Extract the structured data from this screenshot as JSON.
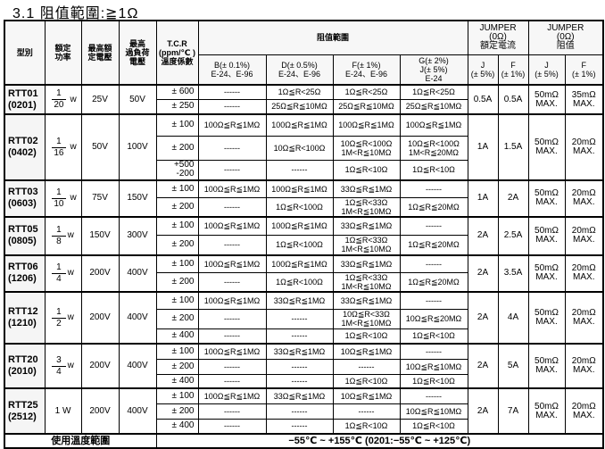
{
  "title": "3.1 阻值範圍:≧1Ω",
  "headers": {
    "model": "型別",
    "power": "額定\n功率",
    "rated_voltage": "最高額\n定電壓",
    "overload_voltage": "最高\n過負荷\n電壓",
    "tcr": "T.C.R\n(ppm/℃ )\n溫度係數",
    "range": "阻值範圍",
    "range_b": "B(± 0.1%)\nE-24、E-96",
    "range_d": "D(± 0.5%)\nE-24、E-96",
    "range_f": "F(± 1%)\nE-24、E-96",
    "range_g": "G(± 2%)\nJ(± 5%)\nE-24",
    "jumper_current": "JUMPER\n(0Ω)\n額定電流",
    "jumper_resistance": "JUMPER\n(0Ω)\n阻值",
    "jc_j": "J\n(± 5%)",
    "jc_f": "F\n(± 1%)",
    "jr_j": "J\n(± 5%)",
    "jr_f": "F\n(± 1%)"
  },
  "rows": [
    {
      "model": "RTT01\n(0201)",
      "power": {
        "num": "1",
        "den": "20",
        "unit": "w"
      },
      "rated_v": "25V",
      "overload_v": "50V",
      "jc_j": "0.5A",
      "jc_f": "0.5A",
      "jr_j": "50mΩ\nMAX.",
      "jr_f": "35mΩ\nMAX.",
      "sub": [
        {
          "tcr": "± 600",
          "b": "------",
          "d": "1Ω≦R<25Ω",
          "f": "1Ω≦R<25Ω",
          "g": "1Ω≦R<25Ω"
        },
        {
          "tcr": "± 250",
          "b": "------",
          "d": "25Ω≦R≦10MΩ",
          "f": "25Ω≦R≦10MΩ",
          "g": "25Ω≦R≦10MΩ"
        }
      ]
    },
    {
      "model": "RTT02\n(0402)",
      "power": {
        "num": "1",
        "den": "16",
        "unit": "w"
      },
      "rated_v": "50V",
      "overload_v": "100V",
      "jc_j": "1A",
      "jc_f": "1.5A",
      "jr_j": "50mΩ\nMAX.",
      "jr_f": "20mΩ\nMAX.",
      "sub": [
        {
          "tcr": "± 100",
          "b": "100Ω≦R≦1MΩ",
          "d": "100Ω≦R≦1MΩ",
          "f": "100Ω≦R≦1MΩ",
          "g": "100Ω≦R≦1MΩ"
        },
        {
          "tcr": "± 200",
          "b": "------",
          "d": "10Ω≦R<100Ω",
          "f": "10Ω≦R<100Ω\n1M<R≦10MΩ",
          "g": "10Ω≦R<100Ω\n1M<R≦20MΩ"
        },
        {
          "tcr": "+500\n-200",
          "b": "------",
          "d": "------",
          "f": "1Ω≦R<10Ω",
          "g": "1Ω≦R<10Ω"
        }
      ]
    },
    {
      "model": "RTT03\n(0603)",
      "power": {
        "num": "1",
        "den": "10",
        "unit": "w"
      },
      "rated_v": "75V",
      "overload_v": "150V",
      "jc_j": "1A",
      "jc_f": "2A",
      "jr_j": "50mΩ\nMAX.",
      "jr_f": "20mΩ\nMAX.",
      "sub": [
        {
          "tcr": "± 100",
          "b": "100Ω≦R≦1MΩ",
          "d": "100Ω≦R≦1MΩ",
          "f": "33Ω≦R≦1MΩ",
          "g": "------"
        },
        {
          "tcr": "± 200",
          "b": "------",
          "d": "1Ω≦R<100Ω",
          "f": "1Ω≦R<33Ω\n1M<R≦10MΩ",
          "g": "1Ω≦R≦20MΩ"
        }
      ]
    },
    {
      "model": "RTT05\n(0805)",
      "power": {
        "num": "1",
        "den": "8",
        "unit": "w"
      },
      "rated_v": "150V",
      "overload_v": "300V",
      "jc_j": "2A",
      "jc_f": "2.5A",
      "jr_j": "50mΩ\nMAX.",
      "jr_f": "20mΩ\nMAX.",
      "sub": [
        {
          "tcr": "± 100",
          "b": "100Ω≦R≦1MΩ",
          "d": "100Ω≦R≦1MΩ",
          "f": "33Ω≦R≦1MΩ",
          "g": "------"
        },
        {
          "tcr": "± 200",
          "b": "------",
          "d": "1Ω≦R<100Ω",
          "f": "1Ω≦R<33Ω\n1M<R≦10MΩ",
          "g": "1Ω≦R≦20MΩ"
        }
      ]
    },
    {
      "model": "RTT06\n(1206)",
      "power": {
        "num": "1",
        "den": "4",
        "unit": "w"
      },
      "rated_v": "200V",
      "overload_v": "400V",
      "jc_j": "2A",
      "jc_f": "3.5A",
      "jr_j": "50mΩ\nMAX.",
      "jr_f": "20mΩ\nMAX.",
      "sub": [
        {
          "tcr": "± 100",
          "b": "100Ω≦R≦1MΩ",
          "d": "100Ω≦R≦1MΩ",
          "f": "33Ω≦R≦1MΩ",
          "g": "------"
        },
        {
          "tcr": "± 200",
          "b": "------",
          "d": "1Ω≦R<100Ω",
          "f": "1Ω≦R<33Ω\n1M<R≦10MΩ",
          "g": "1Ω≦R≦20MΩ"
        }
      ]
    },
    {
      "model": "RTT12\n(1210)",
      "power": {
        "num": "1",
        "den": "2",
        "unit": "w"
      },
      "rated_v": "200V",
      "overload_v": "400V",
      "jc_j": "2A",
      "jc_f": "4A",
      "jr_j": "50mΩ\nMAX.",
      "jr_f": "20mΩ\nMAX.",
      "sub": [
        {
          "tcr": "± 100",
          "b": "100Ω≦R≦1MΩ",
          "d": "33Ω≦R≦1MΩ",
          "f": "33Ω≦R≦1MΩ",
          "g": "------"
        },
        {
          "tcr": "± 200",
          "b": "------",
          "d": "------",
          "f": "10Ω≦R<33Ω\n1M<R≦10MΩ",
          "g": "10Ω≦R≦20MΩ"
        },
        {
          "tcr": "± 400",
          "b": "------",
          "d": "------",
          "f": "1Ω≦R<10Ω",
          "g": "1Ω≦R<10Ω"
        }
      ]
    },
    {
      "model": "RTT20\n(2010)",
      "power": {
        "num": "3",
        "den": "4",
        "unit": "w"
      },
      "rated_v": "200V",
      "overload_v": "400V",
      "jc_j": "2A",
      "jc_f": "5A",
      "jr_j": "50mΩ\nMAX.",
      "jr_f": "20mΩ\nMAX.",
      "sub": [
        {
          "tcr": "± 100",
          "b": "100Ω≦R≦1MΩ",
          "d": "33Ω≦R≦1MΩ",
          "f": "10Ω≦R≦1MΩ",
          "g": "------"
        },
        {
          "tcr": "± 200",
          "b": "------",
          "d": "------",
          "f": "------",
          "g": "10Ω≦R≦10MΩ"
        },
        {
          "tcr": "± 400",
          "b": "------",
          "d": "------",
          "f": "1Ω≦R<10Ω",
          "g": "1Ω≦R<10Ω"
        }
      ]
    },
    {
      "model": "RTT25\n(2512)",
      "power": {
        "text": "1 W"
      },
      "rated_v": "200V",
      "overload_v": "400V",
      "jc_j": "2A",
      "jc_f": "7A",
      "jr_j": "50mΩ\nMAX.",
      "jr_f": "20mΩ\nMAX.",
      "sub": [
        {
          "tcr": "± 100",
          "b": "100Ω≦R≦1MΩ",
          "d": "33Ω≦R≦1MΩ",
          "f": "10Ω≦R≦1MΩ",
          "g": "------"
        },
        {
          "tcr": "± 200",
          "b": "------",
          "d": "------",
          "f": "------",
          "g": "10Ω≦R≦10MΩ"
        },
        {
          "tcr": "± 400",
          "b": "------",
          "d": "------",
          "f": "1Ω≦R<10Ω",
          "g": "1Ω≦R<10Ω"
        }
      ]
    }
  ],
  "footer": {
    "label": "使用溫度範圍",
    "value": "−55℃ ~ +155℃ (0201:−55℃ ~ +125℃)"
  }
}
